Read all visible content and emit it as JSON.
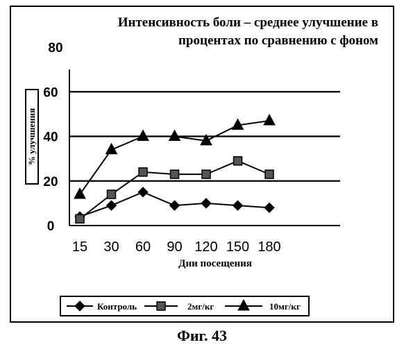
{
  "chart_data": {
    "type": "line",
    "title": "Интенсивность боли – среднее улучшение в процентах по сравнению с фоном",
    "xlabel": "Дни посещения",
    "ylabel": "% улучшения",
    "categories": [
      "15",
      "30",
      "60",
      "90",
      "120",
      "150",
      "180"
    ],
    "y_ticks": [
      "0",
      "20",
      "40",
      "60",
      "80"
    ],
    "ylim": [
      0,
      80
    ],
    "grid": "horizontal at 20, 40, 60",
    "legend_position": "bottom",
    "series": [
      {
        "name": "Контроль",
        "marker": "diamond",
        "values": [
          4,
          9,
          15,
          9,
          10,
          9,
          8
        ]
      },
      {
        "name": "2мг/кг",
        "marker": "square",
        "values": [
          3,
          14,
          24,
          23,
          23,
          29,
          23
        ]
      },
      {
        "name": "10мг/кг",
        "marker": "triangle",
        "values": [
          14,
          34,
          40,
          40,
          38,
          45,
          47
        ]
      }
    ],
    "colors": {
      "line": "#000000",
      "background": "#ffffff"
    }
  },
  "caption": "Фиг. 43"
}
